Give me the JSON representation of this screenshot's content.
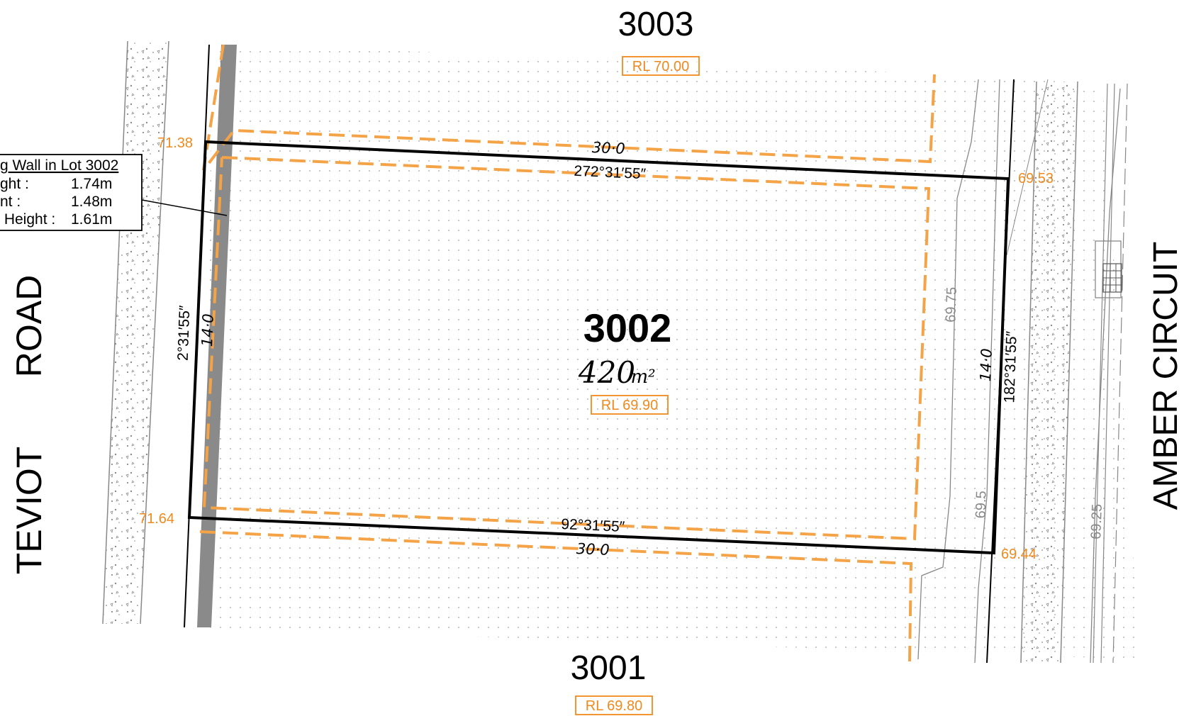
{
  "lots": {
    "north": {
      "number": "3003",
      "rl": "RL 70.00"
    },
    "main": {
      "number": "3002",
      "area_value": "420",
      "area_unit": "m²",
      "rl": "RL 69.90"
    },
    "south": {
      "number": "3001",
      "rl": "RL 69.80"
    }
  },
  "roads": {
    "west": [
      "TEVIOT",
      "ROAD"
    ],
    "east": "AMBER CIRCUIT"
  },
  "boundary": {
    "north_length": "30·0",
    "north_bearing": "272°31′55″",
    "south_length": "30·0",
    "south_bearing": "92°31′55″",
    "west_length": "14·0",
    "west_bearing": "2°31′55″",
    "east_length": "14·0",
    "east_bearing": "182°31′55″"
  },
  "corner_levels": {
    "north_west": "71.38",
    "south_west": "71.64",
    "north_east": "69.53",
    "south_east": "69.44"
  },
  "contours": [
    "69.75",
    "69.5",
    "69.25"
  ],
  "retaining_wall": {
    "title": "g Wall in Lot 3002",
    "rows": [
      {
        "label": "ght :",
        "value": "1.74m"
      },
      {
        "label": "nt :",
        "value": "1.48m"
      },
      {
        "label": " Height :",
        "value": "1.61m"
      }
    ]
  },
  "colors": {
    "boundary": "#000000",
    "level_orange": "#f08a1e",
    "dashed_orange": "#f5a347",
    "wall_grey": "#8a8a8a",
    "contour_grey": "#888888",
    "dot_grey": "#b8b8b8"
  }
}
